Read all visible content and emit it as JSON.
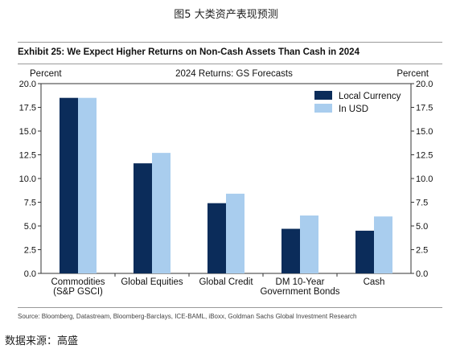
{
  "figure_caption": "图5 大类资产表现预测",
  "exhibit_title": "Exhibit 25: We Expect Higher Returns on Non-Cash Assets Than Cash in 2024",
  "source_note": "Source: Bloomberg, Datastream, Bloomberg-Barclays, ICE-BAML, iBoxx, Goldman Sachs Global Investment Research",
  "data_source": "数据来源：高盛",
  "chart_data": {
    "type": "bar",
    "title": "2024 Returns: GS Forecasts",
    "ylabel_left": "Percent",
    "ylabel_right": "Percent",
    "ylim": [
      0,
      20
    ],
    "yticks": [
      "0.0",
      "2.5",
      "5.0",
      "7.5",
      "10.0",
      "12.5",
      "15.0",
      "17.5",
      "20.0"
    ],
    "categories": [
      [
        "Commodities",
        "(S&P GSCI)"
      ],
      [
        "Global Equities"
      ],
      [
        "Global Credit"
      ],
      [
        "DM 10-Year",
        "Government Bonds"
      ],
      [
        "Cash"
      ]
    ],
    "series": [
      {
        "name": "Local Currency",
        "color": "#0b2c5a",
        "values": [
          18.5,
          11.6,
          7.4,
          4.7,
          4.5
        ]
      },
      {
        "name": "In USD",
        "color": "#a9cdee",
        "values": [
          18.5,
          12.7,
          8.4,
          6.1,
          6.0
        ]
      }
    ],
    "legend_position": "top-right",
    "grid": false
  }
}
